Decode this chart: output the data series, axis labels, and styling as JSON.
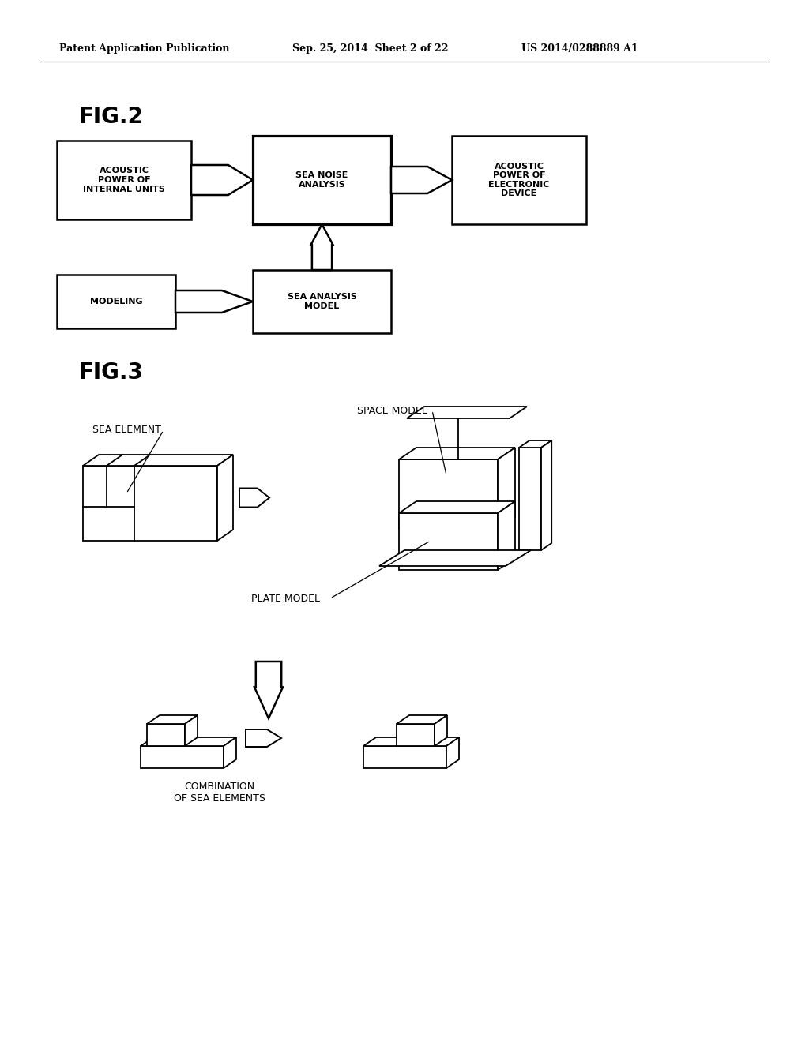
{
  "bg_color": "#ffffff",
  "header_left": "Patent Application Publication",
  "header_mid": "Sep. 25, 2014  Sheet 2 of 22",
  "header_right": "US 2014/0288889 A1",
  "fig2_label": "FIG.2",
  "fig3_label": "FIG.3",
  "box1_text": "ACOUSTIC\nPOWER OF\nINTERNAL UNITS",
  "box2_text": "SEA NOISE\nANALYSIS",
  "box3_text": "ACOUSTIC\nPOWER OF\nELECTRONIC\nDEVICE",
  "box4_text": "MODELING",
  "box5_text": "SEA ANALYSIS\nMODEL",
  "sea_element_label": "SEA ELEMENT",
  "space_model_label": "SPACE MODEL",
  "plate_model_label": "PLATE MODEL",
  "combination_label": "COMBINATION\nOF SEA ELEMENTS"
}
